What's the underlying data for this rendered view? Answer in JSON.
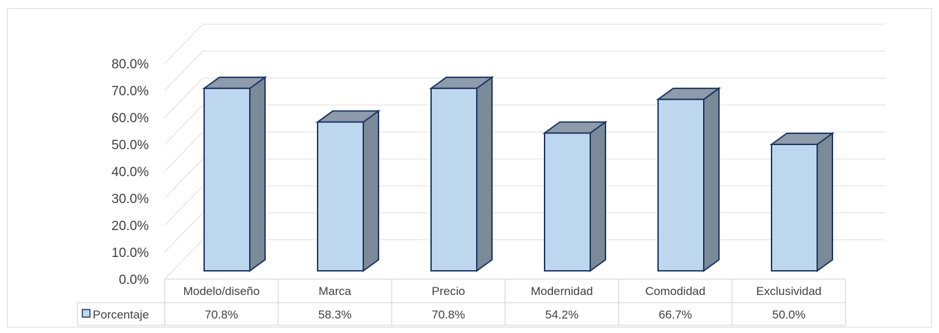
{
  "chart_data": {
    "type": "bar",
    "title": "",
    "xlabel": "",
    "ylabel": "",
    "categories": [
      "Modelo/diseño",
      "Marca",
      "Precio",
      "Modernidad",
      "Comodidad",
      "Exclusividad"
    ],
    "series": [
      {
        "name": "Porcentaje",
        "values": [
          70.8,
          58.3,
          70.8,
          54.2,
          66.7,
          50.0
        ]
      }
    ],
    "value_labels": [
      "70.8%",
      "58.3%",
      "70.8%",
      "54.2%",
      "66.7%",
      "50.0%"
    ],
    "y_ticks": [
      "0.0%",
      "10.0%",
      "20.0%",
      "30.0%",
      "40.0%",
      "50.0%",
      "60.0%",
      "70.0%",
      "80.0%"
    ],
    "ylim": [
      0,
      80
    ],
    "grid": true,
    "legend": "data-table",
    "three_d": true
  },
  "colors": {
    "bar_front": "#bdd7ee",
    "bar_side": "#7a8a99",
    "bar_top": "#8d9bab",
    "bar_outline": "#1f3864",
    "grid": "#e3e3e3",
    "text": "#404040"
  }
}
